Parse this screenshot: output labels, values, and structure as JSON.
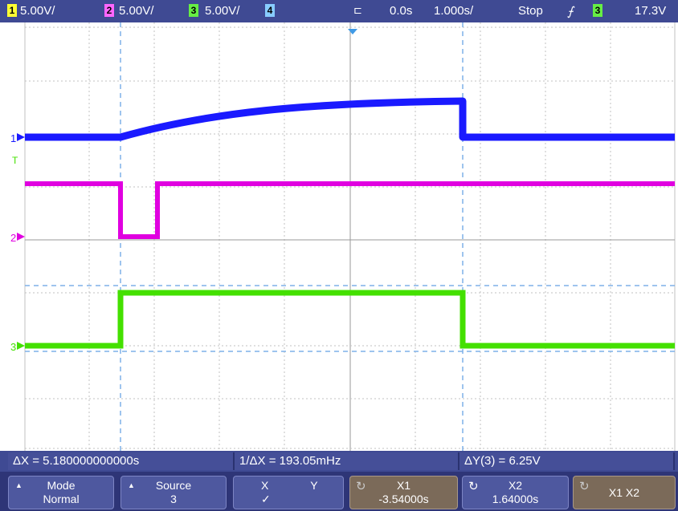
{
  "header": {
    "ch1": {
      "num": "1",
      "scale": "5.00V/"
    },
    "ch2": {
      "num": "2",
      "scale": "5.00V/"
    },
    "ch3": {
      "num": "3",
      "scale": "5.00V/"
    },
    "ch4": {
      "num": "4"
    },
    "time_delay": "0.0s",
    "time_scale": "1.000s/",
    "run_status": "Stop",
    "trigger_source": "3",
    "trigger_level": "17.3V"
  },
  "markers": {
    "ch1": "1",
    "ch2": "2",
    "ch3": "3",
    "trigger": "T"
  },
  "measurements": {
    "delta_x": "ΔX = 5.180000000000s",
    "inverse_delta_x": "1/ΔX = 193.05mHz",
    "delta_y": "ΔY(3) = 6.25V"
  },
  "softkeys": {
    "mode": {
      "label": "Mode",
      "value": "Normal"
    },
    "source": {
      "label": "Source",
      "value": "3"
    },
    "xy": {
      "x": "X",
      "y": "Y",
      "check": "✓"
    },
    "x1": {
      "label": "X1",
      "value": "-3.54000s"
    },
    "x2": {
      "label": "X2",
      "value": "1.64000s"
    },
    "x1x2": {
      "label": "X1 X2"
    }
  },
  "colors": {
    "ch1": "#1a1aff",
    "ch2": "#e000e0",
    "ch3": "#44e000",
    "ch4": "#55aaff",
    "cursor": "#7fb0e8",
    "grid": "#bfbfbf",
    "bar": "#3f4a93"
  }
}
